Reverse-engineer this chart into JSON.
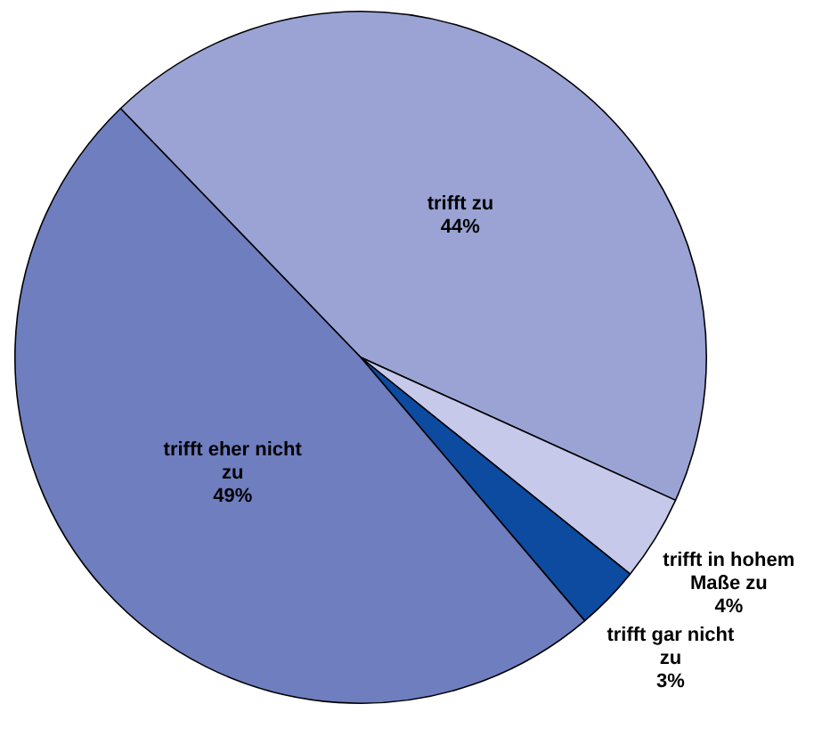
{
  "chart_data": {
    "type": "pie",
    "categories": [
      "trifft zu",
      "trifft in hohem Maße zu",
      "trifft gar nicht zu",
      "trifft eher nicht zu"
    ],
    "values": [
      44,
      4,
      3,
      49
    ],
    "value_labels": [
      "44%",
      "4%",
      "3%",
      "49%"
    ],
    "colors": [
      "#9aa3d3",
      "#c6c9ea",
      "#0d4ba0",
      "#6e7ebf"
    ],
    "legend": false
  }
}
